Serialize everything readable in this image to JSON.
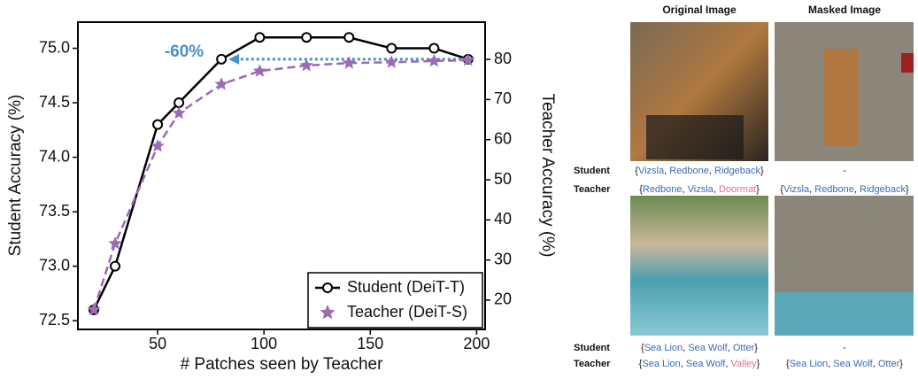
{
  "chart_data": {
    "type": "line",
    "x_label": "# Patches seen by Teacher",
    "y_label": "Student Accuracy (%)",
    "y2_label": "Teacher Accuracy (%)",
    "annotation": "-60%",
    "x": [
      20,
      30,
      50,
      60,
      80,
      98,
      120,
      140,
      160,
      180,
      196
    ],
    "series": [
      {
        "name": "Student (DeiT-T)",
        "color": "#000000",
        "values": [
          72.6,
          73.0,
          74.3,
          74.5,
          74.9,
          75.1,
          75.1,
          75.1,
          75.0,
          75.0,
          74.9
        ]
      },
      {
        "name": "Teacher (DeiT-S)",
        "color": "#9b6bb5",
        "axis": "y2",
        "values": [
          17.6,
          34.1,
          58.4,
          66.6,
          73.8,
          77.1,
          78.5,
          79.1,
          79.3,
          79.6,
          79.8
        ]
      }
    ],
    "xlim": [
      12.5,
      204
    ],
    "xticks": [
      50,
      100,
      150,
      200
    ],
    "ylim": [
      72.42,
      75.24
    ],
    "yticks": [
      72.5,
      {
        "value": 73,
        "label": "73.0"
      },
      73.5,
      {
        "value": 74,
        "label": "74.0"
      },
      74.5,
      {
        "value": 75,
        "label": "75.0"
      }
    ],
    "y2lim": [
      12.7,
      89.3
    ],
    "y2ticks": [
      20,
      30,
      40,
      50,
      60,
      70,
      80
    ],
    "legend": "lower right",
    "grid": false
  },
  "figure": {
    "headers": [
      "Original Image",
      "Masked Image"
    ],
    "panels": [
      {
        "rows": [
          {
            "label": "Student",
            "original": [
              {
                "t": "{",
                "c": "#222"
              },
              {
                "t": "Vizsla",
                "c": "#3b6cb4"
              },
              {
                "t": ", ",
                "c": "#222"
              },
              {
                "t": "Redbone",
                "c": "#3b6cb4"
              },
              {
                "t": ", ",
                "c": "#222"
              },
              {
                "t": "Ridgeback",
                "c": "#3b6cb4"
              },
              {
                "t": "}",
                "c": "#222"
              }
            ],
            "masked": [
              {
                "t": "-",
                "c": "#222"
              }
            ]
          },
          {
            "label": "Teacher",
            "original": [
              {
                "t": "{",
                "c": "#222"
              },
              {
                "t": "Redbone",
                "c": "#3b6cb4"
              },
              {
                "t": ", ",
                "c": "#222"
              },
              {
                "t": "Vizsla",
                "c": "#3b6cb4"
              },
              {
                "t": ", ",
                "c": "#222"
              },
              {
                "t": "Doormat",
                "c": "#e0709a"
              },
              {
                "t": "}",
                "c": "#222"
              }
            ],
            "masked": [
              {
                "t": "{",
                "c": "#222"
              },
              {
                "t": "Vizsla",
                "c": "#3b6cb4"
              },
              {
                "t": ", ",
                "c": "#222"
              },
              {
                "t": "Redbone",
                "c": "#3b6cb4"
              },
              {
                "t": ", ",
                "c": "#222"
              },
              {
                "t": "Ridgeback",
                "c": "#3b6cb4"
              },
              {
                "t": "}",
                "c": "#222"
              }
            ]
          }
        ]
      },
      {
        "rows": [
          {
            "label": "Student",
            "original": [
              {
                "t": "{",
                "c": "#222"
              },
              {
                "t": "Sea Lion",
                "c": "#3b6cb4"
              },
              {
                "t": ", ",
                "c": "#222"
              },
              {
                "t": "Sea Wolf",
                "c": "#3b6cb4"
              },
              {
                "t": ", ",
                "c": "#222"
              },
              {
                "t": "Otter",
                "c": "#3b6cb4"
              },
              {
                "t": "}",
                "c": "#222"
              }
            ],
            "masked": [
              {
                "t": "-",
                "c": "#222"
              }
            ]
          },
          {
            "label": "Teacher",
            "original": [
              {
                "t": "{",
                "c": "#222"
              },
              {
                "t": "Sea Lion",
                "c": "#3b6cb4"
              },
              {
                "t": ", ",
                "c": "#222"
              },
              {
                "t": "Sea Wolf",
                "c": "#3b6cb4"
              },
              {
                "t": ", ",
                "c": "#222"
              },
              {
                "t": "Valley",
                "c": "#e0709a"
              },
              {
                "t": "}",
                "c": "#222"
              }
            ],
            "masked": [
              {
                "t": "{",
                "c": "#222"
              },
              {
                "t": "Sea Lion",
                "c": "#3b6cb4"
              },
              {
                "t": ", ",
                "c": "#222"
              },
              {
                "t": "Sea Wolf",
                "c": "#3b6cb4"
              },
              {
                "t": ", ",
                "c": "#222"
              },
              {
                "t": "Otter",
                "c": "#3b6cb4"
              },
              {
                "t": "}",
                "c": "#222"
              }
            ]
          }
        ]
      }
    ]
  }
}
